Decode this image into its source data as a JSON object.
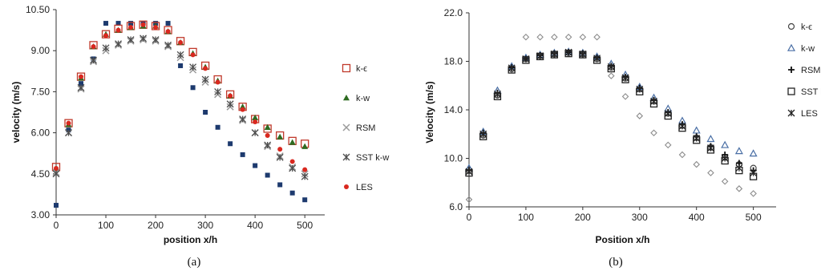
{
  "panels": [
    {
      "label": "(a)"
    },
    {
      "label": "(b)"
    }
  ],
  "chart_data": [
    {
      "type": "scatter",
      "title": "",
      "xlabel": "position x/h",
      "ylabel": "velocity (m/s)",
      "xlim": [
        0,
        540
      ],
      "ylim": [
        3.0,
        10.5
      ],
      "xticks": [
        "0",
        "100",
        "200",
        "300",
        "400",
        "500"
      ],
      "yticks": [
        "3.00",
        "4.50",
        "6.00",
        "7.50",
        "9.00",
        "10.50"
      ],
      "grid": false,
      "legend_position": "right",
      "legend": [
        "k-ϵ",
        "k-w",
        "RSM",
        "SST k-w",
        "LES"
      ],
      "x": [
        0,
        25,
        50,
        75,
        100,
        125,
        150,
        175,
        200,
        225,
        250,
        275,
        300,
        325,
        350,
        375,
        400,
        425,
        450,
        475,
        500
      ],
      "series": [
        {
          "values": [
            3.35,
            6.1,
            7.8,
            8.7,
            10.0,
            10.0,
            10.0,
            10.0,
            10.0,
            10.0,
            8.45,
            7.65,
            6.75,
            6.2,
            5.6,
            5.2,
            4.8,
            4.45,
            4.1,
            3.8,
            3.55
          ]
        },
        {
          "name": "k-ϵ",
          "values": [
            4.75,
            6.35,
            8.05,
            9.2,
            9.6,
            9.8,
            9.9,
            9.95,
            9.9,
            9.75,
            9.35,
            8.95,
            8.45,
            7.95,
            7.4,
            6.95,
            6.5,
            6.15,
            5.9,
            5.7,
            5.6
          ]
        },
        {
          "name": "k-w",
          "values": [
            4.7,
            6.3,
            8.0,
            9.15,
            9.6,
            9.75,
            9.85,
            9.9,
            9.9,
            9.7,
            9.3,
            8.9,
            8.4,
            7.9,
            7.35,
            6.95,
            6.55,
            6.2,
            5.85,
            5.65,
            5.5
          ]
        },
        {
          "name": "RSM",
          "values": [
            4.55,
            6.0,
            7.6,
            8.6,
            9.0,
            9.2,
            9.35,
            9.4,
            9.35,
            9.15,
            8.75,
            8.3,
            7.85,
            7.4,
            6.95,
            6.45,
            6.0,
            5.5,
            5.15,
            4.75,
            4.5
          ]
        },
        {
          "name": "SST k-w",
          "values": [
            4.5,
            6.0,
            7.65,
            8.65,
            9.1,
            9.25,
            9.4,
            9.45,
            9.4,
            9.2,
            8.85,
            8.4,
            7.95,
            7.5,
            7.05,
            6.5,
            6.0,
            5.55,
            5.1,
            4.7,
            4.4
          ]
        },
        {
          "name": "LES",
          "values": [
            4.7,
            6.35,
            8.05,
            9.15,
            9.55,
            9.75,
            9.85,
            9.95,
            9.85,
            9.7,
            9.3,
            8.85,
            8.35,
            7.85,
            7.35,
            6.85,
            6.4,
            5.9,
            5.4,
            4.95,
            4.65
          ]
        }
      ]
    },
    {
      "type": "scatter",
      "title": "",
      "xlabel": "Position x/h",
      "ylabel": "Velocity (m/s)",
      "xlim": [
        0,
        540
      ],
      "ylim": [
        6.0,
        22.0
      ],
      "xticks": [
        "0",
        "100",
        "200",
        "300",
        "400",
        "500"
      ],
      "yticks": [
        "6.0",
        "10.0",
        "14.0",
        "18.0",
        "22.0"
      ],
      "grid": false,
      "legend_position": "right",
      "legend": [
        "k-ϵ",
        "k-w",
        "RSM",
        "SST k-w",
        "LES"
      ],
      "x": [
        0,
        25,
        50,
        75,
        100,
        125,
        150,
        175,
        200,
        225,
        250,
        275,
        300,
        325,
        350,
        375,
        400,
        425,
        450,
        475,
        500
      ],
      "series": [
        {
          "values": [
            6.6,
            11.9,
            15.2,
            17.3,
            20.0,
            20.0,
            20.0,
            20.0,
            20.0,
            20.0,
            16.8,
            15.1,
            13.5,
            12.1,
            11.1,
            10.3,
            9.5,
            8.8,
            8.1,
            7.5,
            7.1
          ]
        },
        {
          "name": "k-ϵ",
          "values": [
            9.0,
            11.9,
            15.2,
            17.4,
            18.2,
            18.45,
            18.6,
            18.7,
            18.6,
            18.2,
            17.5,
            16.6,
            15.7,
            14.7,
            13.7,
            12.7,
            11.7,
            10.9,
            10.1,
            9.5,
            9.2
          ]
        },
        {
          "name": "k-w",
          "values": [
            9.2,
            12.2,
            15.6,
            17.6,
            18.3,
            18.55,
            18.7,
            18.8,
            18.7,
            18.4,
            17.8,
            16.9,
            15.9,
            15.0,
            14.1,
            13.1,
            12.3,
            11.6,
            11.1,
            10.6,
            10.4
          ]
        },
        {
          "name": "RSM",
          "values": [
            9.0,
            12.1,
            15.4,
            17.5,
            18.2,
            18.5,
            18.65,
            18.75,
            18.65,
            18.3,
            17.6,
            16.7,
            15.8,
            14.8,
            13.8,
            12.8,
            11.8,
            11.0,
            10.3,
            9.6,
            9.0
          ]
        },
        {
          "name": "SST k-w",
          "values": [
            8.8,
            11.8,
            15.1,
            17.3,
            18.1,
            18.4,
            18.55,
            18.65,
            18.55,
            18.1,
            17.4,
            16.5,
            15.5,
            14.5,
            13.5,
            12.5,
            11.5,
            10.7,
            9.8,
            9.0,
            8.5
          ]
        },
        {
          "name": "LES",
          "values": [
            8.9,
            12.0,
            15.3,
            17.45,
            18.2,
            18.45,
            18.6,
            18.75,
            18.6,
            18.25,
            17.55,
            16.65,
            15.7,
            14.7,
            13.7,
            12.65,
            11.65,
            10.85,
            10.0,
            9.2,
            8.8
          ]
        }
      ]
    }
  ]
}
